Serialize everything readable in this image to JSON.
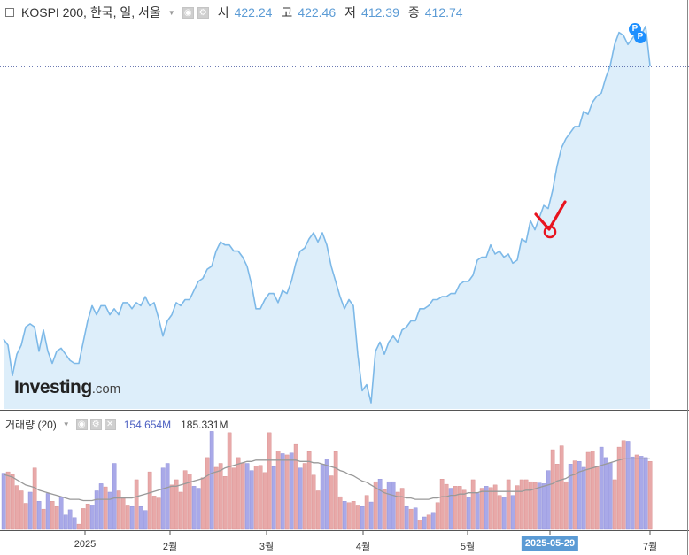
{
  "header": {
    "title": "KOSPI 200, 한국, 일, 서울",
    "open_label": "시",
    "open_value": "422.24",
    "high_label": "고",
    "high_value": "422.46",
    "low_label": "저",
    "low_value": "412.39",
    "close_label": "종",
    "close_value": "412.74"
  },
  "volume_header": {
    "label": "거래량 (20)",
    "value1": "154.654M",
    "value2": "185.331M"
  },
  "logo": {
    "main": "Investing",
    "suffix": ".com"
  },
  "flags": [
    "P",
    "P"
  ],
  "colors": {
    "line": "#7db9e8",
    "area": "#ddeefa",
    "vol_up": "#a9a9e8",
    "vol_down": "#e8a9a9",
    "ma": "#999999",
    "marker": "#e8141f"
  },
  "chart_data": {
    "type": "area",
    "x_labels": [
      "2025",
      "2월",
      "3월",
      "4월",
      "5월",
      "2025-05-29",
      "7월"
    ],
    "highlighted_x_label": "2025-05-29",
    "last_close_line": 412.74,
    "price": [
      323,
      321,
      311,
      318,
      321,
      327,
      328,
      327,
      319,
      326,
      319,
      315,
      319,
      320,
      318,
      316,
      315,
      315,
      322,
      329,
      334,
      331,
      334,
      334,
      331,
      333,
      331,
      335,
      335,
      333,
      335,
      334,
      337,
      334,
      335,
      330,
      324,
      329,
      331,
      335,
      334,
      336,
      336,
      339,
      342,
      343,
      346,
      347,
      352,
      355,
      354,
      354,
      352,
      352,
      350,
      347,
      341,
      333,
      333,
      336,
      338,
      338,
      335,
      339,
      338,
      342,
      348,
      352,
      353,
      356,
      358,
      355,
      358,
      354,
      347,
      342,
      337,
      333,
      336,
      334,
      318,
      306,
      308,
      302,
      319,
      322,
      318,
      322,
      324,
      322,
      326,
      327,
      329,
      329,
      333,
      333,
      334,
      336,
      336,
      337,
      337,
      338,
      338,
      341,
      342,
      342,
      344,
      349,
      350,
      350,
      354,
      351,
      352,
      350,
      351,
      348,
      349,
      356,
      355,
      362,
      359,
      363,
      367,
      366,
      372,
      380,
      386,
      389,
      391,
      393,
      393,
      398,
      397,
      401,
      403,
      404,
      409,
      413,
      420,
      424,
      423,
      420,
      422,
      424,
      423,
      426,
      413
    ],
    "volume": [
      143.0,
      144.0,
      142.0,
      133.5,
      129.5,
      120.0,
      128.5,
      147.0,
      121.5,
      115.5,
      127.5,
      121.5,
      117.5,
      124.5,
      111.0,
      115.0,
      109.0,
      104.0,
      116.0,
      119.5,
      118.5,
      129.5,
      135.0,
      132.5,
      128.5,
      150.5,
      129.5,
      124.0,
      118.0,
      117.5,
      138.0,
      117.5,
      114.5,
      144.0,
      125.5,
      124.0,
      147.0,
      150.5,
      134.0,
      138.0,
      128.5,
      145.0,
      142.5,
      133.0,
      131.5,
      139.5,
      155.0,
      175.0,
      147.5,
      150.5,
      140.5,
      174.0,
      147.0,
      155.0,
      151.0,
      150.5,
      145.0,
      148.5,
      149.0,
      143.5,
      174.0,
      148.0,
      160.0,
      158.0,
      157.0,
      158.5,
      165.0,
      147.0,
      150.5,
      159.5,
      141.5,
      129.5,
      150.0,
      154.0,
      141.0,
      159.5,
      125.0,
      121.5,
      120.5,
      121.5,
      118.0,
      117.5,
      126.0,
      121.0,
      136.5,
      138.5,
      130.5,
      136.5,
      136.5,
      128.5,
      131.5,
      117.5,
      115.5,
      116.5,
      107.0,
      109.5,
      111.0,
      113.0,
      120.5,
      138.5,
      134.5,
      131.5,
      133.0,
      133.0,
      130.0,
      124.5,
      138.0,
      127.5,
      131.5,
      133.0,
      132.0,
      134.0,
      126.0,
      124.5,
      138.0,
      126.0,
      133.5,
      138.0,
      138.0,
      136.5,
      136.0,
      135.5,
      135.0,
      145.0,
      161.0,
      150.0,
      164.0,
      136.5,
      150.0,
      152.5,
      152.0,
      147.5,
      159.0,
      160.0,
      148.0,
      163.0,
      155.0,
      151.0,
      138.0,
      163.0,
      168.0,
      167.5,
      155.5,
      157.0,
      156.0,
      155.0,
      152.0
    ],
    "volume_up": [
      true,
      false,
      false,
      false,
      false,
      false,
      true,
      false,
      true,
      false,
      true,
      false,
      false,
      true,
      true,
      true,
      true,
      false,
      false,
      false,
      true,
      true,
      true,
      false,
      true,
      true,
      false,
      false,
      false,
      true,
      false,
      true,
      true,
      false,
      false,
      false,
      true,
      true,
      false,
      false,
      false,
      false,
      false,
      true,
      true,
      false,
      false,
      true,
      false,
      false,
      false,
      false,
      false,
      false,
      false,
      true,
      true,
      false,
      false,
      false,
      false,
      true,
      false,
      true,
      false,
      true,
      false,
      true,
      false,
      false,
      false,
      false,
      true,
      true,
      false,
      false,
      false,
      true,
      false,
      false,
      false,
      true,
      false,
      true,
      false,
      true,
      false,
      true,
      true,
      false,
      false,
      true,
      false,
      true,
      false,
      true,
      false,
      true,
      false,
      false,
      false,
      true,
      false,
      false,
      false,
      true,
      false,
      true,
      false,
      true,
      false,
      false,
      false,
      true,
      false,
      true,
      false,
      false,
      false,
      false,
      false,
      true,
      true,
      true,
      false,
      false,
      false,
      false,
      true,
      false,
      true,
      true,
      false,
      false,
      false,
      true,
      true,
      true,
      false,
      false,
      false,
      true,
      true,
      false,
      true,
      true,
      false
    ],
    "volume_ma": [
      142,
      141,
      140,
      138,
      136,
      134,
      133,
      132,
      130,
      129,
      128,
      127,
      126,
      125,
      124,
      123,
      123,
      123,
      122,
      122,
      122,
      123,
      123,
      123,
      123,
      124,
      124,
      124,
      124,
      124,
      125,
      126,
      127,
      128,
      129,
      130,
      131,
      132,
      133,
      133,
      134,
      135,
      136,
      137,
      138,
      139,
      141,
      143,
      144,
      145,
      147,
      148,
      149,
      150,
      151,
      152,
      152,
      153,
      153,
      153,
      153,
      153,
      153,
      153,
      153,
      153,
      153,
      152,
      152,
      152,
      151,
      151,
      150,
      149,
      148,
      147,
      145,
      144,
      142,
      141,
      139,
      137,
      136,
      134,
      132,
      130,
      128,
      127,
      126,
      125,
      125,
      124,
      124,
      123,
      123,
      123,
      123,
      124,
      124,
      125,
      125,
      126,
      126,
      127,
      127,
      128,
      128,
      128,
      129,
      129,
      129,
      129,
      129,
      129,
      129,
      129,
      129,
      129,
      130,
      130,
      131,
      132,
      133,
      134,
      135,
      137,
      138,
      139,
      141,
      142,
      144,
      145,
      146,
      147,
      148,
      149,
      150,
      151,
      152,
      153,
      154,
      154,
      154,
      154,
      154,
      154,
      154
    ]
  }
}
